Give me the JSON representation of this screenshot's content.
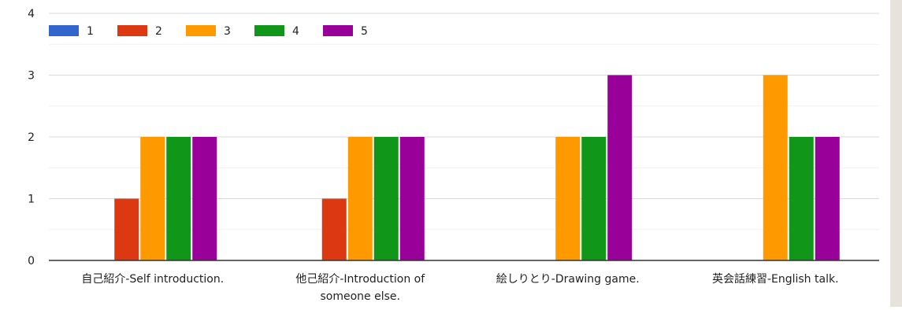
{
  "chart_data": {
    "type": "bar",
    "categories": [
      [
        "自己紹介-Self introduction."
      ],
      [
        "他己紹介-Introduction of",
        "someone else."
      ],
      [
        "絵しりとり-Drawing game."
      ],
      [
        "英会話練習-English talk."
      ]
    ],
    "series": [
      {
        "name": "1",
        "color": "#3366cc",
        "values": [
          0,
          0,
          0,
          0
        ]
      },
      {
        "name": "2",
        "color": "#dc3912",
        "values": [
          1,
          1,
          0,
          0
        ]
      },
      {
        "name": "3",
        "color": "#ff9900",
        "values": [
          2,
          2,
          2,
          3
        ]
      },
      {
        "name": "4",
        "color": "#109618",
        "values": [
          2,
          2,
          2,
          2
        ]
      },
      {
        "name": "5",
        "color": "#990099",
        "values": [
          2,
          2,
          3,
          2
        ]
      }
    ],
    "y_ticks": [
      "0",
      "1",
      "2",
      "3",
      "4"
    ],
    "ylim": [
      0,
      4
    ],
    "legend_position": "top-left",
    "grid": true
  }
}
